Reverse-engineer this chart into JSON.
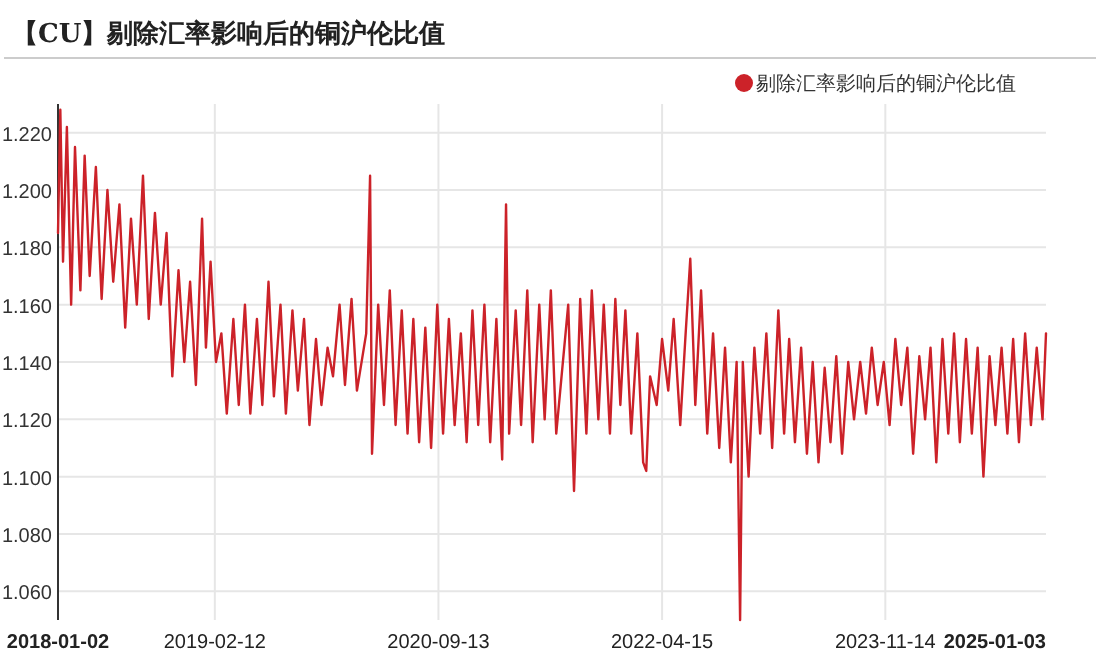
{
  "chart_data": {
    "type": "line",
    "title": "【CU】剔除汇率影响后的铜沪伦比值",
    "legend": "top right",
    "grid": true,
    "marker": "none",
    "line_style": "solid",
    "xlim": [
      "2018-01-02",
      "2025-01-03"
    ],
    "xticks": [
      {
        "value": "2018-01-02",
        "label": "2018-01-02"
      },
      {
        "value": "2019-02-12",
        "label": "2019-02-12"
      },
      {
        "value": "2020-09-13",
        "label": "2020-09-13"
      },
      {
        "value": "2022-04-15",
        "label": "2022-04-15"
      },
      {
        "value": "2023-11-14",
        "label": "2023-11-14"
      },
      {
        "value": "2025-01-03",
        "label": "2025-01-03"
      }
    ],
    "ylim": [
      1.05,
      1.23
    ],
    "yticks": [
      {
        "value": 1.06,
        "label": "1.060"
      },
      {
        "value": 1.08,
        "label": "1.080"
      },
      {
        "value": 1.1,
        "label": "1.100"
      },
      {
        "value": 1.12,
        "label": "1.120"
      },
      {
        "value": 1.14,
        "label": "1.140"
      },
      {
        "value": 1.16,
        "label": "1.160"
      },
      {
        "value": 1.18,
        "label": "1.180"
      },
      {
        "value": 1.2,
        "label": "1.200"
      },
      {
        "value": 1.22,
        "label": "1.220"
      }
    ],
    "series": [
      {
        "name": "剔除汇率影响后的铜沪伦比值",
        "color": "#cc2229",
        "x": [
          "2018-01-02",
          "2018-01-08",
          "2018-01-15",
          "2018-01-25",
          "2018-02-05",
          "2018-02-15",
          "2018-03-01",
          "2018-03-12",
          "2018-03-25",
          "2018-04-10",
          "2018-04-25",
          "2018-05-10",
          "2018-05-25",
          "2018-06-10",
          "2018-06-25",
          "2018-07-10",
          "2018-07-25",
          "2018-08-10",
          "2018-08-25",
          "2018-09-10",
          "2018-09-25",
          "2018-10-10",
          "2018-10-25",
          "2018-11-10",
          "2018-11-25",
          "2018-12-10",
          "2018-12-25",
          "2019-01-10",
          "2019-01-20",
          "2019-02-01",
          "2019-02-15",
          "2019-03-01",
          "2019-03-15",
          "2019-04-01",
          "2019-04-15",
          "2019-05-01",
          "2019-05-15",
          "2019-06-01",
          "2019-06-15",
          "2019-07-01",
          "2019-07-15",
          "2019-08-01",
          "2019-08-15",
          "2019-09-01",
          "2019-09-15",
          "2019-10-01",
          "2019-10-15",
          "2019-11-01",
          "2019-11-15",
          "2019-12-01",
          "2019-12-15",
          "2020-01-01",
          "2020-01-15",
          "2020-02-01",
          "2020-02-15",
          "2020-03-10",
          "2020-03-20",
          "2020-03-25",
          "2020-04-10",
          "2020-04-25",
          "2020-05-10",
          "2020-05-25",
          "2020-06-10",
          "2020-06-25",
          "2020-07-10",
          "2020-07-25",
          "2020-08-10",
          "2020-08-25",
          "2020-09-10",
          "2020-09-25",
          "2020-10-10",
          "2020-10-25",
          "2020-11-10",
          "2020-11-25",
          "2020-12-10",
          "2020-12-25",
          "2021-01-10",
          "2021-01-25",
          "2021-02-10",
          "2021-02-25",
          "2021-03-07",
          "2021-03-15",
          "2021-04-01",
          "2021-04-15",
          "2021-05-01",
          "2021-05-15",
          "2021-06-01",
          "2021-06-15",
          "2021-07-01",
          "2021-07-15",
          "2021-08-15",
          "2021-08-30",
          "2021-09-15",
          "2021-10-01",
          "2021-10-15",
          "2021-11-01",
          "2021-11-15",
          "2021-12-01",
          "2021-12-15",
          "2021-12-28",
          "2022-01-10",
          "2022-01-25",
          "2022-02-10",
          "2022-02-25",
          "2022-03-05",
          "2022-03-15",
          "2022-04-01",
          "2022-04-15",
          "2022-05-01",
          "2022-05-15",
          "2022-06-01",
          "2022-06-15",
          "2022-06-27",
          "2022-07-10",
          "2022-07-25",
          "2022-08-10",
          "2022-08-25",
          "2022-09-10",
          "2022-09-25",
          "2022-10-10",
          "2022-10-25",
          "2022-11-03",
          "2022-11-10",
          "2022-11-25",
          "2022-12-10",
          "2022-12-25",
          "2023-01-10",
          "2023-01-25",
          "2023-02-10",
          "2023-02-25",
          "2023-03-10",
          "2023-03-25",
          "2023-04-10",
          "2023-04-25",
          "2023-05-10",
          "2023-05-25",
          "2023-06-10",
          "2023-06-25",
          "2023-07-10",
          "2023-07-25",
          "2023-08-10",
          "2023-08-25",
          "2023-09-10",
          "2023-09-25",
          "2023-10-10",
          "2023-10-25",
          "2023-11-10",
          "2023-11-25",
          "2023-12-10",
          "2023-12-25",
          "2024-01-10",
          "2024-01-25",
          "2024-02-10",
          "2024-02-25",
          "2024-03-10",
          "2024-03-25",
          "2024-04-10",
          "2024-04-25",
          "2024-05-10",
          "2024-05-25",
          "2024-06-10",
          "2024-06-25",
          "2024-07-10",
          "2024-07-25",
          "2024-08-10",
          "2024-08-25",
          "2024-09-10",
          "2024-09-25",
          "2024-10-10",
          "2024-10-25",
          "2024-11-10",
          "2024-11-25",
          "2024-12-10",
          "2024-12-25",
          "2025-01-03"
        ],
        "values": [
          1.185,
          1.228,
          1.175,
          1.222,
          1.16,
          1.215,
          1.165,
          1.212,
          1.17,
          1.208,
          1.162,
          1.2,
          1.168,
          1.195,
          1.152,
          1.19,
          1.16,
          1.205,
          1.155,
          1.192,
          1.16,
          1.185,
          1.135,
          1.172,
          1.14,
          1.168,
          1.132,
          1.19,
          1.145,
          1.175,
          1.14,
          1.15,
          1.122,
          1.155,
          1.125,
          1.16,
          1.122,
          1.155,
          1.125,
          1.168,
          1.128,
          1.16,
          1.122,
          1.158,
          1.13,
          1.155,
          1.118,
          1.148,
          1.125,
          1.145,
          1.135,
          1.16,
          1.132,
          1.162,
          1.13,
          1.15,
          1.205,
          1.108,
          1.16,
          1.125,
          1.165,
          1.118,
          1.158,
          1.115,
          1.155,
          1.112,
          1.152,
          1.11,
          1.16,
          1.115,
          1.155,
          1.118,
          1.15,
          1.112,
          1.158,
          1.118,
          1.16,
          1.112,
          1.155,
          1.106,
          1.195,
          1.115,
          1.158,
          1.118,
          1.165,
          1.112,
          1.16,
          1.12,
          1.165,
          1.115,
          1.16,
          1.095,
          1.162,
          1.115,
          1.165,
          1.12,
          1.16,
          1.115,
          1.162,
          1.125,
          1.158,
          1.115,
          1.15,
          1.105,
          1.102,
          1.135,
          1.125,
          1.148,
          1.13,
          1.155,
          1.118,
          1.15,
          1.176,
          1.125,
          1.165,
          1.115,
          1.15,
          1.11,
          1.145,
          1.105,
          1.14,
          1.05,
          1.14,
          1.1,
          1.145,
          1.115,
          1.15,
          1.11,
          1.158,
          1.115,
          1.148,
          1.112,
          1.145,
          1.108,
          1.14,
          1.105,
          1.138,
          1.112,
          1.142,
          1.108,
          1.14,
          1.12,
          1.14,
          1.122,
          1.145,
          1.125,
          1.14,
          1.118,
          1.148,
          1.125,
          1.145,
          1.108,
          1.142,
          1.12,
          1.145,
          1.105,
          1.148,
          1.115,
          1.15,
          1.112,
          1.148,
          1.115,
          1.145,
          1.1,
          1.142,
          1.118,
          1.145,
          1.115,
          1.148,
          1.112,
          1.15,
          1.118,
          1.145,
          1.12,
          1.15
        ]
      }
    ]
  }
}
